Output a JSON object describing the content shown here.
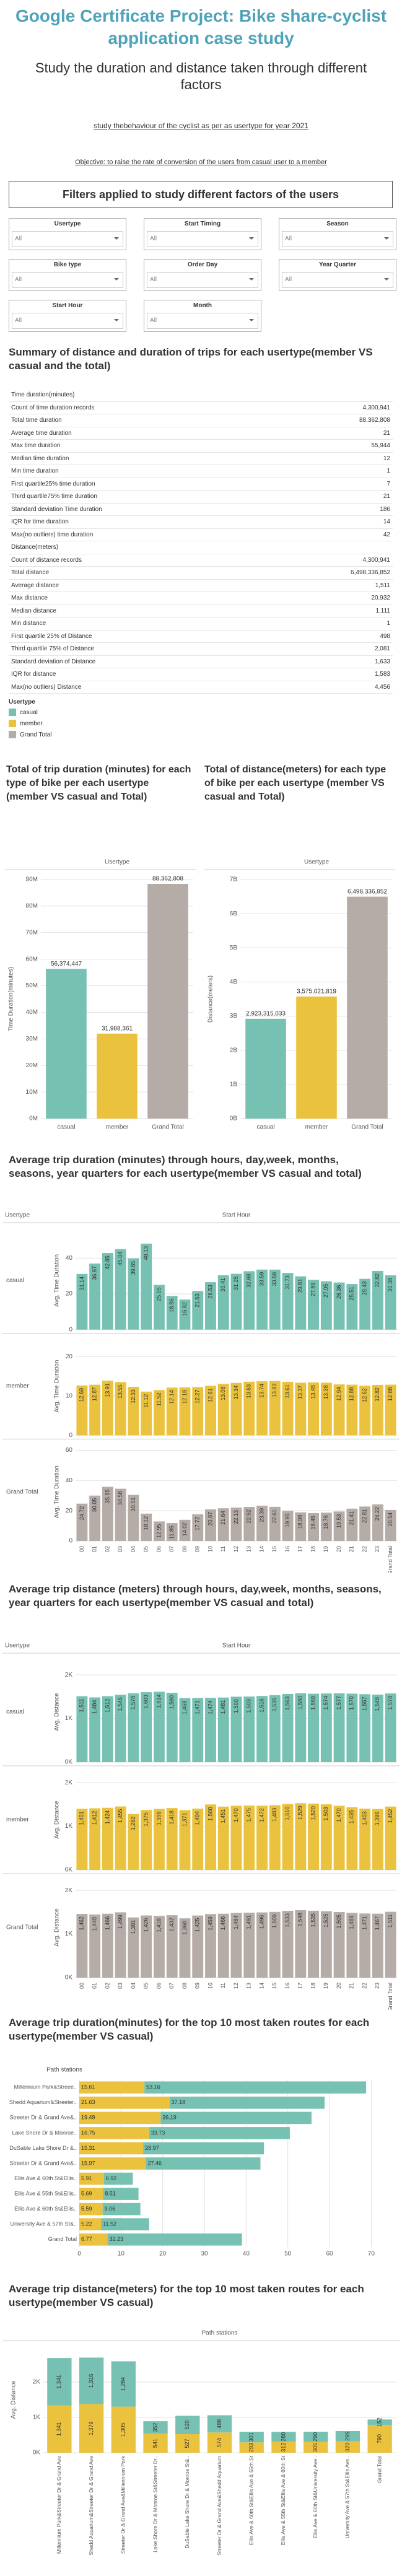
{
  "header": {
    "title": "Google Certificate Project: Bike share-cyclist application case study",
    "subtitle": "Study the duration and distance taken through different factors",
    "study": "study thebehaviour of the cyclist as per as usertype for year 2021",
    "objective": "Objective: to raise the rate of conversion of the users from casual user to a member"
  },
  "filters": {
    "title": "Filters applied to study different factors of the users",
    "items": [
      {
        "label": "Usertype",
        "value": "All"
      },
      {
        "label": "Start Timing",
        "value": "All"
      },
      {
        "label": "Season",
        "value": "All"
      },
      {
        "label": "Bike type",
        "value": "All"
      },
      {
        "label": "Order Day",
        "value": "All"
      },
      {
        "label": "Year Quarter",
        "value": "All"
      },
      {
        "label": "Start Hour",
        "value": "All"
      },
      {
        "label": "Month",
        "value": "All"
      }
    ]
  },
  "summary": {
    "title": "Summary of distance and duration of trips for each usertype(member VS casual and the total)",
    "rows": [
      {
        "label": "Time duration(minutes)"
      },
      {
        "label": "Count of time duration records",
        "value": "4,300,941"
      },
      {
        "label": "Total time duration",
        "value": "88,362,808"
      },
      {
        "label": "Average time duration",
        "value": "21"
      },
      {
        "label": "Max time duration",
        "value": "55,944"
      },
      {
        "label": "Median time duration",
        "value": "12"
      },
      {
        "label": "Min time duration",
        "value": "1"
      },
      {
        "label": "First quartile25% time duration",
        "value": "7"
      },
      {
        "label": "Third quartile75% time duration",
        "value": "21"
      },
      {
        "label": "Standard deviation Time duration",
        "value": "186"
      },
      {
        "label": "IQR for time duration",
        "value": "14"
      },
      {
        "label": "Max(no outliers) time duration",
        "value": "42"
      },
      {
        "label": "Distance(meters)"
      },
      {
        "label": "Count of distance records",
        "value": "4,300,941"
      },
      {
        "label": "Total distance",
        "value": "6,498,336,852"
      },
      {
        "label": "Average distance",
        "value": "1,511"
      },
      {
        "label": "Max distance",
        "value": "20,932"
      },
      {
        "label": "Median distance",
        "value": "1,111"
      },
      {
        "label": "Min distance",
        "value": "1"
      },
      {
        "label": "First quartile 25% of Distance",
        "value": "498"
      },
      {
        "label": "Third quartile 75% of Distance",
        "value": "2,081"
      },
      {
        "label": "Standard deviation of Distance",
        "value": "1,633"
      },
      {
        "label": "IQR for distance",
        "value": "1,583"
      },
      {
        "label": "Max(no outliers) Distance",
        "value": "4,456"
      }
    ]
  },
  "legend": {
    "title": "Usertype",
    "items": [
      {
        "name": "casual",
        "color": "#76c1b2"
      },
      {
        "name": "member",
        "color": "#ebc23e"
      },
      {
        "name": "Grand Total",
        "color": "#b6aca7"
      }
    ]
  },
  "chart_data": [
    {
      "type": "bar",
      "title": "Total of trip duration (minutes) for each type of bike per each usertype (member VS casual and Total)",
      "header": "Usertype",
      "y_label": "Time Duration(minutes)",
      "categories": [
        "casual",
        "member",
        "Grand Total"
      ],
      "values": [
        56374447,
        31988361,
        88362808
      ],
      "value_labels": [
        "56,374,447",
        "31,988,361",
        "88,362,808"
      ],
      "colors": [
        "#76c1b2",
        "#ebc23e",
        "#b6aca7"
      ],
      "ylim": [
        0,
        90000000
      ],
      "yticks": [
        {
          "value": 0,
          "label": "0M"
        },
        {
          "value": 10000000,
          "label": "10M"
        },
        {
          "value": 20000000,
          "label": "20M"
        },
        {
          "value": 30000000,
          "label": "30M"
        },
        {
          "value": 40000000,
          "label": "40M"
        },
        {
          "value": 50000000,
          "label": "50M"
        },
        {
          "value": 60000000,
          "label": "60M"
        },
        {
          "value": 70000000,
          "label": "70M"
        },
        {
          "value": 80000000,
          "label": "80M"
        },
        {
          "value": 90000000,
          "label": "90M"
        }
      ],
      "grid": true
    },
    {
      "type": "bar",
      "title": "Total of distance(meters) for each type of bike per each usertype (member VS casual and Total)",
      "header": "Usertype",
      "y_label": "Distance(meters)",
      "categories": [
        "casual",
        "member",
        "Grand Total"
      ],
      "values": [
        2923315033,
        3575021819,
        6498336852
      ],
      "value_labels": [
        "2,923,315,033",
        "3,575,021,819",
        "6,498,336,852"
      ],
      "colors": [
        "#76c1b2",
        "#ebc23e",
        "#b6aca7"
      ],
      "ylim": [
        0,
        7000000000
      ],
      "yticks": [
        {
          "value": 0,
          "label": "0B"
        },
        {
          "value": 1000000000,
          "label": "1B"
        },
        {
          "value": 2000000000,
          "label": "2B"
        },
        {
          "value": 3000000000,
          "label": "3B"
        },
        {
          "value": 4000000000,
          "label": "4B"
        },
        {
          "value": 5000000000,
          "label": "5B"
        },
        {
          "value": 6000000000,
          "label": "6B"
        },
        {
          "value": 7000000000,
          "label": "7B"
        }
      ],
      "grid": true
    },
    {
      "type": "facet_bar",
      "title": "Average trip duration (minutes) through hours, day,week, months, seasons, year quarters for each usertype(member VS casual and total)",
      "row_header": "Usertype",
      "column_header": "Start Hour",
      "y_label": "Avg. Time Duration",
      "categories": [
        "00",
        "01",
        "02",
        "03",
        "04",
        "05",
        "06",
        "07",
        "08",
        "09",
        "10",
        "11",
        "12",
        "13",
        "14",
        "15",
        "16",
        "17",
        "18",
        "19",
        "20",
        "21",
        "22",
        "23",
        "Grand Total"
      ],
      "grid": true,
      "rows": [
        {
          "name": "casual",
          "color": "#76c1b2",
          "ylim": [
            0,
            55
          ],
          "yticks": [
            0,
            20,
            40
          ],
          "values": [
            31.14,
            36.97,
            42.85,
            45.04,
            39.85,
            48.13,
            25.05,
            18.86,
            16.82,
            21.63,
            26.53,
            30.41,
            31.25,
            32.68,
            33.59,
            33.58,
            31.73,
            29.81,
            27.86,
            27.05,
            26.36,
            25.51,
            28.43,
            32.82,
            30.38
          ]
        },
        {
          "name": "member",
          "color": "#ebc23e",
          "ylim": [
            0,
            25
          ],
          "yticks": [
            0,
            10,
            20
          ],
          "values": [
            12.69,
            12.87,
            13.91,
            13.55,
            12.33,
            11.12,
            11.52,
            12.14,
            12.18,
            12.27,
            12.61,
            13.08,
            13.34,
            13.63,
            13.74,
            13.83,
            13.61,
            13.37,
            13.45,
            13.38,
            12.94,
            12.88,
            12.62,
            12.82,
            12.88
          ]
        },
        {
          "name": "Grand Total",
          "color": "#b6aca7",
          "ylim": [
            0,
            65
          ],
          "yticks": [
            0,
            20,
            40,
            60
          ],
          "values": [
            24.72,
            30.05,
            35.85,
            34.58,
            30.51,
            18.12,
            12.95,
            11.85,
            14.02,
            17.72,
            20.97,
            21.64,
            22.13,
            22.52,
            23.39,
            22.61,
            19.95,
            18.98,
            18.45,
            18.76,
            19.53,
            21.41,
            22.81,
            24.22,
            20.54
          ]
        }
      ]
    },
    {
      "type": "facet_bar",
      "title": "Average trip distance (meters) through hours, day,week, months, seasons, year quarters for each usertype(member VS casual and total)",
      "row_header": "Usertype",
      "column_header": "Start Hour",
      "y_label": "Avg. Distance",
      "categories": [
        "00",
        "01",
        "02",
        "03",
        "04",
        "05",
        "06",
        "07",
        "08",
        "09",
        "10",
        "11",
        "12",
        "13",
        "14",
        "15",
        "16",
        "17",
        "18",
        "19",
        "20",
        "21",
        "22",
        "23",
        "Grand Total"
      ],
      "grid": true,
      "rows": [
        {
          "name": "casual",
          "color": "#76c1b2",
          "ylim": [
            0,
            2300
          ],
          "yticks": [
            {
              "value": 0,
              "label": "0K"
            },
            {
              "value": 1000,
              "label": "1K"
            },
            {
              "value": 2000,
              "label": "2K"
            }
          ],
          "values": [
            1511,
            1484,
            1512,
            1546,
            1578,
            1603,
            1614,
            1590,
            1468,
            1471,
            1474,
            1481,
            1500,
            1503,
            1516,
            1535,
            1563,
            1580,
            1569,
            1574,
            1577,
            1570,
            1557,
            1548,
            1574
          ],
          "value_labels": [
            "1,511",
            "1,484",
            "1,512",
            "1,546",
            "1,578",
            "1,603",
            "1,614",
            "1,590",
            "1,468",
            "1,471",
            "1,474",
            "1,481",
            "1,500",
            "1,503",
            "1,516",
            "1,535",
            "1,563",
            "1,580",
            "1,569",
            "1,574",
            "1,577",
            "1,570",
            "1,557",
            "1,548",
            "1,574"
          ]
        },
        {
          "name": "member",
          "color": "#ebc23e",
          "ylim": [
            0,
            2300
          ],
          "yticks": [
            {
              "value": 0,
              "label": "0K"
            },
            {
              "value": 1000,
              "label": "1K"
            },
            {
              "value": 2000,
              "label": "2K"
            }
          ],
          "values": [
            1401,
            1412,
            1424,
            1455,
            1282,
            1375,
            1398,
            1418,
            1371,
            1404,
            1500,
            1451,
            1470,
            1475,
            1472,
            1483,
            1510,
            1529,
            1520,
            1503,
            1470,
            1435,
            1403,
            1396,
            1452
          ],
          "value_labels": [
            "1,401",
            "1,412",
            "1,424",
            "1,455",
            "1,282",
            "1,375",
            "1,398",
            "1,418",
            "1,371",
            "1,404",
            "1,500",
            "1,451",
            "1,470",
            "1,475",
            "1,472",
            "1,483",
            "1,510",
            "1,529",
            "1,520",
            "1,503",
            "1,470",
            "1,435",
            "1,403",
            "1,396",
            "1,452"
          ]
        },
        {
          "name": "Grand Total",
          "color": "#b6aca7",
          "ylim": [
            0,
            2300
          ],
          "yticks": [
            {
              "value": 0,
              "label": "0K"
            },
            {
              "value": 1000,
              "label": "1K"
            },
            {
              "value": 2000,
              "label": "2K"
            }
          ],
          "values": [
            1462,
            1448,
            1466,
            1499,
            1381,
            1426,
            1418,
            1432,
            1360,
            1425,
            1459,
            1466,
            1484,
            1491,
            1496,
            1509,
            1533,
            1548,
            1535,
            1525,
            1505,
            1486,
            1471,
            1467,
            1511
          ],
          "value_labels": [
            "1,462",
            "1,448",
            "1,466",
            "1,499",
            "1,381",
            "1,426",
            "1,418",
            "1,432",
            "1,360",
            "1,425",
            "1,459",
            "1,466",
            "1,484",
            "1,491",
            "1,496",
            "1,509",
            "1,533",
            "1,548",
            "1,535",
            "1,525",
            "1,505",
            "1,486",
            "1,471",
            "1,467",
            "1,511"
          ]
        }
      ]
    },
    {
      "type": "hstack",
      "title": "Average trip duration(minutes) for the top 10 most taken routes for each usertype(member VS casual)",
      "header": "Path stations",
      "categories": [
        "Millennium Park&Streee..",
        "Shedd Aquarium&Streeter..",
        "Streeter Dr & Grand Ave&..",
        "Lake Shore Dr & Monroe..",
        "DuSable Lake Shore Dr &..",
        "Streeter Dr & Grand Ave&..",
        "Ellis Ave & 60th St&Ellis..",
        "Ellis Ave & 55th St&Ellis..",
        "Ellis Ave & 60th St&Ellis..",
        "University Ave & 57th St&..",
        "Grand Total"
      ],
      "series": [
        {
          "name": "member",
          "color": "#ebc23e",
          "values": [
            15.61,
            21.63,
            19.49,
            16.75,
            15.31,
            15.97,
            5.91,
            5.69,
            5.59,
            5.22,
            6.77
          ]
        },
        {
          "name": "casual",
          "color": "#76c1b2",
          "values": [
            53.16,
            37.18,
            36.19,
            33.73,
            28.97,
            27.46,
            6.92,
            8.51,
            9.06,
            11.52,
            32.23
          ]
        }
      ],
      "xlim": [
        0,
        75
      ],
      "xticks": [
        0,
        10,
        20,
        30,
        40,
        50,
        60,
        70
      ],
      "grid": true
    },
    {
      "type": "vstack",
      "title": "Average trip distance(meters) for the top 10 most taken routes for each usertype(member VS casual)",
      "header": "Path stations",
      "y_label": "Avg. Distance",
      "categories": [
        "Millennium Park&Streeter Dr & Grand Ave",
        "Shedd Aquarium&Streeter Dr & Grand Ave",
        "Streeter Dr & Grand Ave&Millennium Park",
        "Lake Shore Dr & Monroe St&Streeter Dr..",
        "DuSable Lake Shore Dr & Monroe St&..",
        "Streeter Dr & Grand Ave&Shedd Aquarium",
        "Ellis Ave & 60th St&Ellis Ave & 55th St",
        "Ellis Ave & 55th St&Ellis Ave & 60th St",
        "Ellis Ave & 60th St&University Ave..",
        "University Ave & 57th St&Ellis Ave..",
        "Grand Total"
      ],
      "series": [
        {
          "name": "member",
          "color": "#ebc23e",
          "values": [
            1341,
            1379,
            1305,
            541,
            527,
            574,
            293,
            312,
            305,
            320,
            790
          ],
          "value_labels": [
            "1,341",
            "1,379",
            "1,305",
            "541",
            "527",
            "574",
            "293",
            "312",
            "305",
            "320",
            "790"
          ]
        },
        {
          "name": "casual",
          "color": "#76c1b2",
          "values": [
            1341,
            1316,
            1284,
            352,
            520,
            488,
            301,
            280,
            290,
            295,
            152
          ],
          "value_labels": [
            "1,341",
            "1,316",
            "1,284",
            "352",
            "520",
            "488",
            "301",
            "280",
            "290",
            "295",
            "152"
          ]
        }
      ],
      "ylim": [
        0,
        3000
      ],
      "yticks": [
        {
          "value": 0,
          "label": "0K"
        },
        {
          "value": 1000,
          "label": "1K"
        },
        {
          "value": 2000,
          "label": "2K"
        }
      ],
      "grid": true
    }
  ]
}
